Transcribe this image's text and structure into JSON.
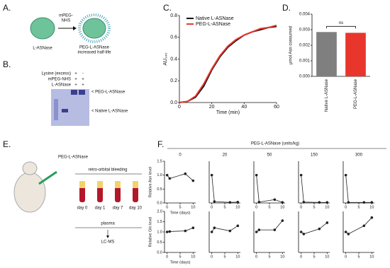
{
  "panel_labels": [
    "A.",
    "B.",
    "C.",
    "D.",
    "E.",
    "F."
  ],
  "panel_a": {
    "reagent": [
      "mPEG-",
      "NHS"
    ],
    "left": "L-ASNase",
    "right": [
      "PEG-L-ASNase",
      "increased half-life"
    ]
  },
  "panel_b": {
    "rows": [
      [
        "Lysine (excess)",
        "+",
        "-"
      ],
      [
        "mPEG-NHS",
        "+",
        "+"
      ],
      [
        "L-ASNase",
        "+",
        "+"
      ]
    ],
    "bands": [
      "< PEG-L-ASNase",
      "< Native L-ASNase"
    ]
  },
  "panel_e": {
    "drug": "PEG-L-ASNase",
    "step": "retro-orbital bleeding",
    "days": [
      "day 0",
      "day 1",
      "day 7",
      "day 10"
    ],
    "sample": "plasma",
    "method": "LC-MS"
  },
  "panel_f": {
    "header": "PEG-L-ASNase (units/kg)"
  },
  "chart_data": [
    {
      "type": "line",
      "x": [
        0,
        5,
        10,
        15,
        20,
        25,
        30,
        35,
        40,
        45,
        50,
        55,
        60
      ],
      "xlim": [
        0,
        60
      ],
      "xticks": [
        0,
        20,
        40,
        60
      ],
      "ylim": [
        0,
        0.8
      ],
      "yticks": [
        {
          "value": 0,
          "label": "0.0"
        },
        0.2,
        0.4,
        0.6,
        0.8
      ],
      "xlabel": "Time (min)",
      "ylabel": "AU₃₄₀",
      "legend": "upper left",
      "series": [
        {
          "name": "Native L-ASNase",
          "color": "#111111",
          "values": [
            0,
            0.01,
            0.05,
            0.15,
            0.3,
            0.42,
            0.51,
            0.57,
            0.62,
            0.65,
            0.67,
            0.69,
            0.7
          ]
        },
        {
          "name": "PEG-L-ASNase",
          "color": "#e8362d",
          "values": [
            0,
            0.01,
            0.06,
            0.17,
            0.31,
            0.43,
            0.52,
            0.58,
            0.62,
            0.65,
            0.68,
            0.69,
            0.71
          ]
        }
      ]
    },
    {
      "type": "bar",
      "categories": [
        "Native L-ASNase",
        "PEG-L-ASNase"
      ],
      "values": [
        0.00285,
        0.0028
      ],
      "colors": [
        "#7f7f7f",
        "#e8362d"
      ],
      "ylim": [
        0,
        0.004
      ],
      "yticks": [
        {
          "value": 0,
          "label": "0.000"
        },
        0.001,
        0.002,
        0.003,
        0.004
      ],
      "ylabel": "μmol Asn consumed",
      "annotation": "ns"
    },
    {
      "type": "line",
      "title": "0",
      "x": [
        0,
        1,
        7,
        10
      ],
      "xlim": [
        -1,
        11
      ],
      "xticks": [
        0,
        5,
        10
      ],
      "ylim": [
        0,
        1.5
      ],
      "yticks": [
        {
          "value": 0,
          "label": "0.0"
        },
        0.5,
        {
          "value": 1,
          "label": "1.0"
        },
        1.5
      ],
      "ylabel": "Relative Asn level",
      "xlabel": "Time (days)",
      "markers": true,
      "series": [
        {
          "color": "#222222",
          "values": [
            1.0,
            0.88,
            1.05,
            0.8
          ]
        }
      ]
    },
    {
      "type": "line",
      "title": "20",
      "x": [
        0,
        1,
        7,
        10
      ],
      "xlim": [
        -1,
        11
      ],
      "xticks": [
        0,
        5,
        10
      ],
      "ylim": [
        0,
        1.5
      ],
      "markers": true,
      "series": [
        {
          "color": "#222222",
          "values": [
            1.0,
            0.05,
            0.02,
            0.03
          ]
        }
      ]
    },
    {
      "type": "line",
      "title": "50",
      "x": [
        0,
        1,
        7,
        10
      ],
      "xlim": [
        -1,
        11
      ],
      "xticks": [
        0,
        5,
        10
      ],
      "ylim": [
        0,
        1.5
      ],
      "markers": true,
      "series": [
        {
          "color": "#222222",
          "values": [
            1.0,
            0.03,
            0.12,
            0.02
          ]
        }
      ]
    },
    {
      "type": "line",
      "title": "150",
      "x": [
        0,
        1,
        7,
        10
      ],
      "xlim": [
        -1,
        11
      ],
      "xticks": [
        0,
        5,
        10
      ],
      "ylim": [
        0,
        1.5
      ],
      "markers": true,
      "series": [
        {
          "color": "#222222",
          "values": [
            1.0,
            0.03,
            0.02,
            0.02
          ]
        }
      ]
    },
    {
      "type": "line",
      "title": "300",
      "x": [
        0,
        1,
        7,
        10
      ],
      "xlim": [
        -1,
        11
      ],
      "xticks": [
        0,
        5,
        10
      ],
      "ylim": [
        0,
        1.5
      ],
      "markers": true,
      "series": [
        {
          "color": "#222222",
          "values": [
            1.0,
            0.02,
            0.02,
            0.02
          ]
        }
      ]
    },
    {
      "type": "line",
      "x": [
        0,
        1,
        7,
        10
      ],
      "xlim": [
        -1,
        11
      ],
      "xticks": [
        0,
        5,
        10
      ],
      "ylim": [
        0,
        2
      ],
      "yticks": [
        {
          "value": 0,
          "label": "0.0"
        },
        0.5,
        {
          "value": 1,
          "label": "1.0"
        },
        1.5,
        {
          "value": 2,
          "label": "2.0"
        }
      ],
      "ylabel": "Relative Gln level",
      "xlabel": "Time (days)",
      "markers": true,
      "series": [
        {
          "color": "#222222",
          "values": [
            1.0,
            1.02,
            1.05,
            1.2
          ]
        }
      ]
    },
    {
      "type": "line",
      "x": [
        0,
        1,
        7,
        10
      ],
      "xlim": [
        -1,
        11
      ],
      "xticks": [
        0,
        5,
        10
      ],
      "ylim": [
        0,
        2
      ],
      "markers": true,
      "series": [
        {
          "color": "#222222",
          "values": [
            1.0,
            1.2,
            1.05,
            1.3
          ]
        }
      ]
    },
    {
      "type": "line",
      "x": [
        0,
        1,
        7,
        10
      ],
      "xlim": [
        -1,
        11
      ],
      "xticks": [
        0,
        5,
        10
      ],
      "ylim": [
        0,
        2
      ],
      "markers": true,
      "series": [
        {
          "color": "#222222",
          "values": [
            1.0,
            1.1,
            1.1,
            1.55
          ]
        }
      ]
    },
    {
      "type": "line",
      "x": [
        0,
        1,
        7,
        10
      ],
      "xlim": [
        -1,
        11
      ],
      "xticks": [
        0,
        5,
        10
      ],
      "ylim": [
        0,
        2
      ],
      "markers": true,
      "series": [
        {
          "color": "#222222",
          "values": [
            1.0,
            0.9,
            1.15,
            1.45
          ]
        }
      ]
    },
    {
      "type": "line",
      "x": [
        0,
        1,
        7,
        10
      ],
      "xlim": [
        -1,
        11
      ],
      "xticks": [
        0,
        5,
        10
      ],
      "ylim": [
        0,
        2
      ],
      "markers": true,
      "series": [
        {
          "color": "#222222",
          "values": [
            1.0,
            0.9,
            1.3,
            1.7
          ]
        }
      ]
    }
  ]
}
